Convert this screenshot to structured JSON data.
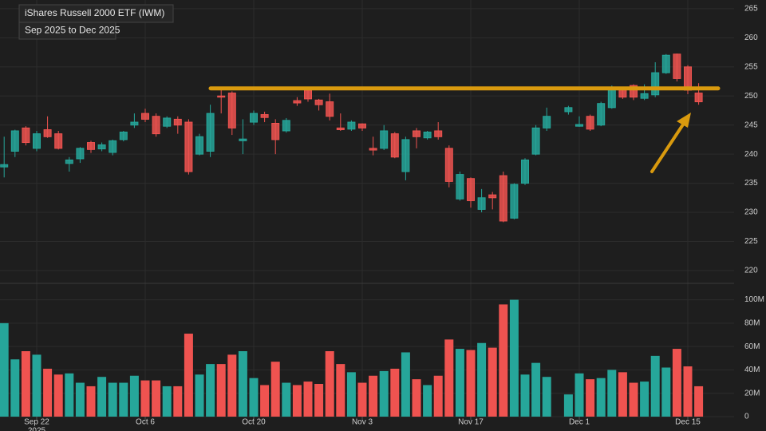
{
  "chart_data": [
    {
      "type": "candlestick",
      "title": "iShares Russell 2000 ETF (IWM)",
      "subtitle": "Sep 2025 to Dec 2025",
      "up_color": "#26a69a",
      "down_color": "#ef5350",
      "open": [
        237.8,
        240.5,
        244.5,
        241,
        244.2,
        243.5,
        238.4,
        239.2,
        242,
        240.9,
        240.3,
        242.5,
        245,
        247,
        246.5,
        244.8,
        246,
        245.5,
        240,
        240.5,
        250,
        250.5,
        242.3,
        245.5,
        246.8,
        245.3,
        244,
        249.2,
        251,
        249.3,
        249,
        244.5,
        244.3,
        245.2,
        241,
        241,
        243.5,
        237,
        244,
        242.8,
        244,
        241,
        232.3,
        235.8,
        230.5,
        233,
        236.3,
        229,
        235,
        240,
        244.5,
        null,
        247.3,
        244.8,
        246.5,
        245,
        248,
        251.2,
        251.8,
        249.6,
        250.2,
        254,
        257.2,
        255,
        250.5
      ],
      "high": [
        243,
        244.2,
        244.8,
        244,
        246.5,
        244,
        239.5,
        241.2,
        242.3,
        242,
        242.5,
        244,
        247,
        247.8,
        247,
        246.5,
        246.5,
        246,
        243.5,
        248.5,
        251.5,
        250.8,
        246,
        247.5,
        247.3,
        246,
        246.2,
        249.8,
        251.3,
        249.5,
        250.4,
        247,
        245.8,
        245.3,
        243,
        245,
        243.8,
        243,
        244.5,
        244,
        245.5,
        241.5,
        237,
        236,
        234,
        233.5,
        237,
        235,
        239.3,
        245,
        248,
        null,
        248.3,
        246.5,
        246.8,
        249,
        251.8,
        251.5,
        252,
        252,
        255.8,
        257.2,
        257.3,
        255.3,
        252.2
      ],
      "low": [
        236,
        239.5,
        241.5,
        240.5,
        242.8,
        240.8,
        237,
        238.5,
        240.2,
        240.5,
        239.8,
        242.2,
        244.5,
        245.5,
        243,
        244.5,
        243.5,
        236.5,
        239.8,
        239.5,
        247,
        243.3,
        240,
        245,
        245.5,
        240,
        243.7,
        248.3,
        249,
        247.5,
        245.8,
        244,
        244,
        244,
        239.8,
        240.7,
        239.3,
        235.5,
        241,
        242.5,
        242.5,
        234.3,
        232,
        230.8,
        230,
        230.5,
        228.3,
        228.8,
        234.7,
        239.8,
        244,
        null,
        246.8,
        244.7,
        244,
        244.8,
        247.8,
        249.5,
        249.3,
        249.3,
        249.8,
        253.8,
        252.5,
        250.3,
        248.5
      ],
      "close": [
        238.2,
        244,
        242,
        243.5,
        243,
        241,
        239,
        241,
        240.8,
        241.6,
        242.3,
        243.8,
        245.5,
        246,
        243.5,
        246.2,
        245,
        237,
        243,
        247,
        249.8,
        244.5,
        242.6,
        247,
        246.3,
        242.5,
        245.8,
        248.8,
        249.5,
        248.5,
        246.5,
        244.2,
        245.5,
        244.5,
        240.7,
        244,
        239.5,
        242.5,
        243,
        243.8,
        243,
        235.3,
        236.5,
        232,
        232.5,
        232.5,
        228.5,
        234.8,
        239,
        244.5,
        246.5,
        null,
        248,
        245.1,
        244.3,
        248.7,
        251,
        249.8,
        249.8,
        250.4,
        254,
        257,
        253,
        251,
        249
      ],
      "ylim": [
        218.2,
        266.5
      ],
      "yticks": [
        220,
        225,
        230,
        235,
        240,
        245,
        250,
        255,
        260,
        265
      ],
      "annotations": [
        {
          "type": "hline",
          "value": 251.3,
          "color": "#d99a0e"
        }
      ]
    },
    {
      "type": "bar",
      "categories": [
        null,
        null,
        null,
        "Sep 22",
        null,
        null,
        null,
        null,
        null,
        null,
        null,
        null,
        null,
        "Oct 6",
        null,
        null,
        null,
        null,
        null,
        null,
        null,
        null,
        null,
        "Oct 20",
        null,
        null,
        null,
        null,
        null,
        null,
        null,
        null,
        null,
        "Nov 3",
        null,
        null,
        null,
        null,
        null,
        null,
        null,
        null,
        null,
        "Nov 17",
        null,
        null,
        null,
        null,
        null,
        null,
        null,
        null,
        null,
        "Dec 1",
        null,
        null,
        null,
        null,
        null,
        null,
        null,
        null,
        null,
        "Dec 15",
        null
      ],
      "year_label": "2025",
      "values": [
        80,
        49,
        56,
        53,
        41,
        36,
        37,
        29,
        26,
        34,
        29,
        29,
        35,
        31,
        31,
        26,
        26,
        71,
        36,
        45,
        45,
        53,
        56,
        33,
        27,
        47,
        29,
        27,
        30,
        28,
        56,
        45,
        38,
        29,
        35,
        39,
        41,
        55,
        32,
        27,
        35,
        66,
        58,
        57,
        63,
        59,
        96,
        100,
        36,
        46,
        34,
        null,
        19,
        37,
        32,
        33,
        40,
        38,
        29,
        30,
        52,
        42,
        58,
        43,
        26
      ],
      "ylim": [
        0,
        112
      ],
      "yticks": [
        0,
        {
          "value": 20,
          "label": "20M"
        },
        {
          "value": 40,
          "label": "40M"
        },
        {
          "value": 60,
          "label": "60M"
        },
        {
          "value": 80,
          "label": "80M"
        },
        {
          "value": 100,
          "label": "100M"
        }
      ]
    }
  ]
}
